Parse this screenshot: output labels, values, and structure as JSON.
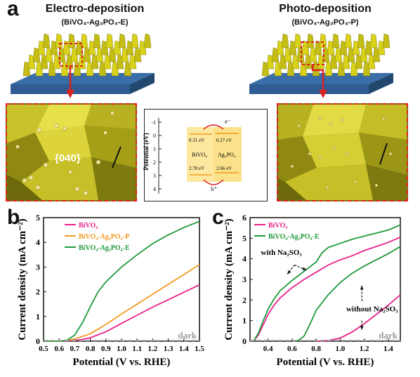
{
  "panel_a": {
    "letter": "a",
    "left": {
      "title": "Electro-deposition",
      "subtitle": "(BiVO₄-Ag₃PO₄-E)",
      "facet_label": "{040}"
    },
    "right": {
      "title": "Photo-deposition",
      "subtitle": "(BiVO₄-Ag₃PO₄-P)"
    },
    "energy_diagram": {
      "ylabel": "Potential (eV)",
      "ticks": [
        "-1",
        "0",
        "1",
        "2",
        "3",
        "4"
      ],
      "bivo4_label": "BiVO₄",
      "ag3po4_label": "Ag₃PO₄",
      "bivo4_cb": "0.31 eV",
      "bivo4_vb": "2.78 eV",
      "ag3po4_cb": "0.27 eV",
      "ag3po4_vb": "2.66 eV",
      "electron": "e⁻",
      "hole": "h⁺"
    }
  },
  "colors": {
    "pink": "#e8218a",
    "orange": "#f39a1e",
    "green": "#1f9a3a",
    "dark": "#9a9a9a",
    "red_dashed": "#e02020",
    "yellow": "#d9d21a"
  },
  "chart_data": [
    {
      "panel": "b",
      "type": "line",
      "xlabel": "Potential (V vs. RHE)",
      "ylabel": "Current density (mA cm⁻²)",
      "xlim": [
        0.5,
        1.5
      ],
      "ylim": [
        0,
        5
      ],
      "xticks": [
        "0.5",
        "0.6",
        "0.7",
        "0.8",
        "0.9",
        "1.0",
        "1.1",
        "1.2",
        "1.3",
        "1.4",
        "1.5"
      ],
      "yticks": [
        "0",
        "1",
        "2",
        "3",
        "4",
        "5"
      ],
      "legend": "top-left",
      "series": [
        {
          "name": "BiVO₄",
          "color": "#e8218a",
          "x": [
            0.5,
            0.6,
            0.7,
            0.75,
            0.8,
            0.9,
            1.0,
            1.1,
            1.2,
            1.3,
            1.4,
            1.5
          ],
          "y": [
            0,
            0,
            0.03,
            0.07,
            0.14,
            0.38,
            0.72,
            1.05,
            1.38,
            1.68,
            1.98,
            2.28
          ]
        },
        {
          "name": "BiVO₄-Ag₃PO₄-P",
          "color": "#f39a1e",
          "x": [
            0.5,
            0.6,
            0.65,
            0.7,
            0.8,
            0.9,
            1.0,
            1.1,
            1.2,
            1.3,
            1.4,
            1.5
          ],
          "y": [
            0,
            0,
            0.03,
            0.09,
            0.3,
            0.68,
            1.1,
            1.5,
            1.9,
            2.3,
            2.7,
            3.1
          ]
        },
        {
          "name": "BiVO₄-Ag₃PO₄-E",
          "color": "#1f9a3a",
          "x": [
            0.5,
            0.6,
            0.65,
            0.7,
            0.75,
            0.8,
            0.85,
            0.9,
            1.0,
            1.1,
            1.2,
            1.3,
            1.4,
            1.5
          ],
          "y": [
            0,
            0,
            0.04,
            0.25,
            0.75,
            1.4,
            2.0,
            2.4,
            3.0,
            3.5,
            3.95,
            4.3,
            4.6,
            4.85
          ]
        },
        {
          "name": "dark",
          "color": "#9a9a9a",
          "dashed": true,
          "x": [
            0.5,
            1.5
          ],
          "y": [
            0.02,
            0.02
          ]
        }
      ],
      "annotations": [
        "dark"
      ]
    },
    {
      "panel": "c",
      "type": "line",
      "xlabel": "Potential (V vs. RHE)",
      "ylabel": "Current density (mA cm⁻²)",
      "xlim": [
        0.25,
        1.5
      ],
      "ylim": [
        0,
        6
      ],
      "xticks": [
        "0.4",
        "0.6",
        "0.8",
        "1.0",
        "1.2",
        "1.4"
      ],
      "yticks": [
        "0",
        "1",
        "2",
        "3",
        "4",
        "5",
        "6"
      ],
      "legend": "top-left",
      "series": [
        {
          "name": "BiVO₄ with Na₂SO₃",
          "color": "#e8218a",
          "x": [
            0.28,
            0.32,
            0.36,
            0.4,
            0.45,
            0.5,
            0.6,
            0.7,
            0.8,
            0.9,
            1.0,
            1.1,
            1.2,
            1.3,
            1.4,
            1.5
          ],
          "y": [
            0,
            0.3,
            0.8,
            1.3,
            1.75,
            2.1,
            2.6,
            3.0,
            3.35,
            3.7,
            3.95,
            4.15,
            4.4,
            4.6,
            4.8,
            5.05
          ]
        },
        {
          "name": "BiVO₄-Ag₃PO₄-E with Na₂SO₃",
          "color": "#1f9a3a",
          "x": [
            0.28,
            0.32,
            0.36,
            0.4,
            0.45,
            0.5,
            0.6,
            0.7,
            0.8,
            0.85,
            0.9,
            1.0,
            1.1,
            1.2,
            1.3,
            1.4,
            1.5
          ],
          "y": [
            0,
            0.4,
            1.0,
            1.55,
            2.05,
            2.45,
            2.95,
            3.4,
            3.85,
            4.3,
            4.55,
            4.75,
            4.95,
            5.1,
            5.25,
            5.4,
            5.65
          ]
        },
        {
          "name": "BiVO₄-Ag₃PO₄-E without Na₂SO₃",
          "color": "#1f9a3a",
          "x": [
            0.6,
            0.65,
            0.7,
            0.75,
            0.8,
            0.9,
            1.0,
            1.1,
            1.2,
            1.3,
            1.4,
            1.5
          ],
          "y": [
            0,
            0.03,
            0.25,
            0.85,
            1.5,
            2.25,
            2.85,
            3.3,
            3.65,
            3.95,
            4.25,
            4.6
          ]
        },
        {
          "name": "BiVO₄ without Na₂SO₃",
          "color": "#e8218a",
          "x": [
            0.8,
            0.9,
            1.0,
            1.1,
            1.2,
            1.3,
            1.4,
            1.5
          ],
          "y": [
            0,
            0.03,
            0.15,
            0.45,
            0.85,
            1.3,
            1.75,
            2.25
          ]
        },
        {
          "name": "dark",
          "color": "#9a9a9a",
          "dashed": true,
          "x": [
            0.25,
            1.5
          ],
          "y": [
            0.03,
            0.03
          ]
        }
      ],
      "legend_entries": [
        "BiVO₄",
        "BiVO₄-Ag₃PO₄-E"
      ],
      "annotations": [
        "with Na₂SO₃",
        "without Na₂SO₃",
        "dark"
      ]
    }
  ]
}
